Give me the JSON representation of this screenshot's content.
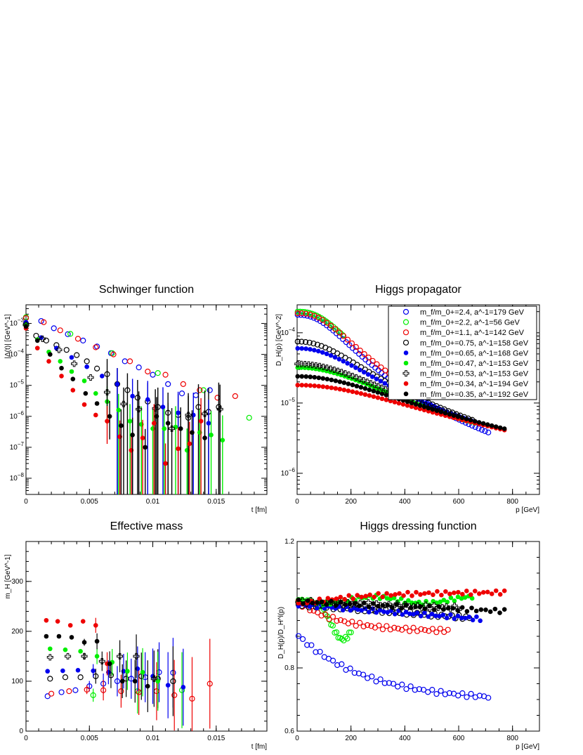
{
  "colors": {
    "blue": "#0000ee",
    "green": "#00ee00",
    "red": "#ee0000",
    "black": "#000000"
  },
  "legend": [
    {
      "label": "m_f/m_0+=2.4, a^-1=179 GeV",
      "color": "#0000ee",
      "style": "open-circle"
    },
    {
      "label": "m_f/m_0+=2.2, a^-1=56 GeV",
      "color": "#00ee00",
      "style": "open-circle"
    },
    {
      "label": "m_f/m_0+=1.1, a^-1=142 GeV",
      "color": "#ee0000",
      "style": "open-circle"
    },
    {
      "label": "m_f/m_0+=0.75, a^-1=158 GeV",
      "color": "#000000",
      "style": "open-circle"
    },
    {
      "label": "m_f/m_0+=0.65, a^-1=168 GeV",
      "color": "#0000ee",
      "style": "filled-circle"
    },
    {
      "label": "m_f/m_0+=0.47, a^-1=153 GeV",
      "color": "#00ee00",
      "style": "filled-circle"
    },
    {
      "label": "m_f/m_0+=0.53, a^-1=153 GeV",
      "color": "#000000",
      "style": "open-cross"
    },
    {
      "label": "m_f/m_0+=0.34, a^-1=194 GeV",
      "color": "#ee0000",
      "style": "filled-circle"
    },
    {
      "label": "m_f/m_0+=0.35, a^-1=192 GeV",
      "color": "#000000",
      "style": "filled-circle"
    }
  ],
  "chart_data": [
    {
      "type": "scatter",
      "title": "Schwinger function",
      "xlabel": "t [fm]",
      "ylabel": "|Δ(t)| [GeV^-1]",
      "xlim": [
        0,
        0.019
      ],
      "ylim": [
        3e-09,
        0.004
      ],
      "yscale": "log",
      "xticks": [
        "0",
        "0.005",
        "0.01",
        "0.015"
      ],
      "yticks": [
        "10^-8",
        "10^-7",
        "10^-6",
        "10^-5",
        "10^-4",
        "10^-3"
      ],
      "series": [
        {
          "values": [
            [
              0.0,
              0.0015
            ],
            [
              0.0012,
              0.0012
            ],
            [
              0.0022,
              0.0007
            ],
            [
              0.0033,
              0.00045
            ],
            [
              0.0045,
              0.00028
            ],
            [
              0.0056,
              0.00018
            ],
            [
              0.0067,
              0.00011
            ],
            [
              0.0078,
              6e-05
            ],
            [
              0.0089,
              3.8e-05
            ],
            [
              0.01,
              2.2e-05
            ],
            [
              0.0112,
              1.1e-05
            ],
            [
              0.0123,
              5.5e-06
            ],
            [
              0.0134,
              4.8e-06
            ],
            [
              0.0145,
              7e-06
            ]
          ]
        },
        {
          "values": [
            [
              0.0,
              0.0016
            ],
            [
              0.0035,
              0.00046
            ],
            [
              0.0068,
              0.00011
            ],
            [
              0.0104,
              2.5e-05
            ],
            [
              0.014,
              7e-06
            ],
            [
              0.0176,
              9e-07
            ]
          ]
        },
        {
          "values": [
            [
              0.0,
              0.0015
            ],
            [
              0.0014,
              0.0011
            ],
            [
              0.0027,
              0.0006
            ],
            [
              0.0041,
              0.00032
            ],
            [
              0.0055,
              0.00017
            ],
            [
              0.0069,
              0.0001
            ],
            [
              0.0082,
              6e-05
            ],
            [
              0.0096,
              2.8e-05
            ],
            [
              0.011,
              2.2e-05
            ],
            [
              0.0124,
              1.1e-05
            ],
            [
              0.0137,
              7e-06
            ],
            [
              0.0151,
              4e-06
            ],
            [
              0.0165,
              4.5e-06
            ]
          ]
        },
        {
          "values": [
            [
              0.0,
              0.001
            ],
            [
              0.0008,
              0.0004
            ],
            [
              0.0016,
              0.00028
            ],
            [
              0.0024,
              0.0002
            ],
            [
              0.0032,
              0.00014
            ],
            [
              0.004,
              9.5e-05
            ],
            [
              0.0048,
              6e-05
            ],
            [
              0.0056,
              3.5e-05
            ],
            [
              0.0064,
              2.3e-05
            ],
            [
              0.0072,
              1.1e-05
            ],
            [
              0.008,
              7e-06
            ],
            [
              0.0088,
              4e-06
            ],
            [
              0.0096,
              3e-06
            ],
            [
              0.0104,
              2e-06
            ],
            [
              0.0112,
              1.3e-06
            ],
            [
              0.012,
              1.1e-06
            ],
            [
              0.0128,
              9e-07
            ],
            [
              0.0136,
              2e-06
            ],
            [
              0.0144,
              1.4e-06
            ],
            [
              0.0152,
              2e-06
            ]
          ]
        },
        {
          "values": [
            [
              0.0,
              0.0011
            ],
            [
              0.0012,
              0.00035
            ],
            [
              0.0024,
              0.00016
            ],
            [
              0.0036,
              8e-05
            ],
            [
              0.0048,
              4e-05
            ],
            [
              0.006,
              2e-05
            ],
            [
              0.0072,
              1.1e-05
            ],
            [
              0.0084,
              4.5e-06
            ],
            [
              0.0096,
              3.5e-06
            ],
            [
              0.0108,
              2e-06
            ],
            [
              0.012,
              1.3e-06
            ],
            [
              0.0132,
              1.1e-06
            ],
            [
              0.0144,
              6e-07
            ]
          ]
        },
        {
          "values": [
            [
              0.0,
              0.0009
            ],
            [
              0.0009,
              0.0003
            ],
            [
              0.0018,
              0.00012
            ],
            [
              0.0027,
              6e-05
            ],
            [
              0.0036,
              2.8e-05
            ],
            [
              0.0046,
              1.4e-05
            ],
            [
              0.0055,
              5.5e-06
            ],
            [
              0.0064,
              3e-06
            ],
            [
              0.0073,
              1.6e-06
            ],
            [
              0.0082,
              7e-07
            ],
            [
              0.0091,
              5.5e-07
            ],
            [
              0.01,
              4e-07
            ],
            [
              0.0109,
              4e-07
            ],
            [
              0.0118,
              4.5e-07
            ],
            [
              0.0127,
              8e-08
            ],
            [
              0.0137,
              3e-07
            ],
            [
              0.0146,
              2.5e-07
            ],
            [
              0.0155,
              1.7e-07
            ]
          ]
        },
        {
          "values": [
            [
              0.0,
              0.0009
            ],
            [
              0.0013,
              0.00032
            ],
            [
              0.0026,
              0.00014
            ],
            [
              0.0038,
              5e-05
            ],
            [
              0.0051,
              1.8e-05
            ],
            [
              0.0064,
              6e-06
            ],
            [
              0.0077,
              2.5e-06
            ],
            [
              0.0089,
              1.7e-06
            ],
            [
              0.0102,
              1.8e-06
            ],
            [
              0.0115,
              4e-07
            ],
            [
              0.0128,
              1.1e-06
            ],
            [
              0.0141,
              1.2e-06
            ],
            [
              0.0153,
              1.7e-06
            ]
          ]
        },
        {
          "values": [
            [
              0.0,
              0.0007
            ],
            [
              0.0009,
              0.00016
            ],
            [
              0.0018,
              6e-05
            ],
            [
              0.0028,
              2e-05
            ],
            [
              0.0037,
              7e-06
            ],
            [
              0.0046,
              2.4e-06
            ],
            [
              0.0055,
              1.1e-06
            ],
            [
              0.0064,
              7e-07
            ],
            [
              0.0074,
              2.2e-07
            ],
            [
              0.0083,
              8e-08
            ],
            [
              0.0092,
              2e-07
            ],
            [
              0.0101,
              6e-07
            ],
            [
              0.011,
              3e-08
            ],
            [
              0.012,
              9e-08
            ],
            [
              0.0129,
              1.3e-07
            ],
            [
              0.0138,
              7e-07
            ]
          ]
        },
        {
          "values": [
            [
              0.0,
              0.0008
            ],
            [
              0.0009,
              0.00028
            ],
            [
              0.0019,
              0.0001
            ],
            [
              0.0028,
              3.6e-05
            ],
            [
              0.0037,
              1.6e-05
            ],
            [
              0.0047,
              5.5e-06
            ],
            [
              0.0056,
              2.6e-06
            ],
            [
              0.0066,
              1e-06
            ],
            [
              0.0075,
              5e-07
            ],
            [
              0.0084,
              2.5e-07
            ],
            [
              0.0094,
              1e-07
            ],
            [
              0.0103,
              1e-06
            ],
            [
              0.0112,
              6e-07
            ],
            [
              0.0122,
              4e-07
            ],
            [
              0.0131,
              3e-07
            ],
            [
              0.0141,
              2e-07
            ]
          ]
        }
      ]
    },
    {
      "type": "scatter",
      "title": "Higgs propagator",
      "xlabel": "p [GeV]",
      "ylabel": "D_H(p) [GeV^-2]",
      "xlim": [
        0,
        900
      ],
      "ylim": [
        5e-07,
        0.00025
      ],
      "yscale": "log",
      "xticks": [
        "0",
        "200",
        "400",
        "600",
        "800"
      ],
      "yticks": [
        "10^-6",
        "10^-5",
        "10^-4"
      ]
    },
    {
      "type": "scatter",
      "title": "Effective mass",
      "xlabel": "t [fm]",
      "ylabel": "m_H [GeV^-1]",
      "xlim": [
        0,
        0.019
      ],
      "ylim": [
        0,
        380
      ],
      "xticks": [
        "0",
        "0.005",
        "0.01",
        "0.015"
      ],
      "yticks": [
        "0",
        "100",
        "200",
        "300"
      ],
      "series": [
        {
          "values": [
            [
              0.0017,
              70
            ],
            [
              0.0028,
              78
            ],
            [
              0.0039,
              82
            ],
            [
              0.005,
              90
            ],
            [
              0.0061,
              95
            ],
            [
              0.0072,
              100
            ],
            [
              0.0083,
              105
            ],
            [
              0.0094,
              108
            ],
            [
              0.0105,
              118
            ],
            [
              0.0116,
              117
            ]
          ]
        },
        {
          "values": [
            [
              0.0053,
              72
            ],
            [
              0.0088,
              80
            ],
            [
              0.0123,
              82
            ]
          ]
        },
        {
          "values": [
            [
              0.002,
              75
            ],
            [
              0.0034,
              80
            ],
            [
              0.0048,
              83
            ],
            [
              0.0061,
              82
            ],
            [
              0.0075,
              80
            ],
            [
              0.0089,
              78
            ],
            [
              0.0103,
              80
            ],
            [
              0.0117,
              72
            ],
            [
              0.0131,
              65
            ],
            [
              0.0145,
              95
            ]
          ]
        },
        {
          "values": [
            [
              0.0019,
              105
            ],
            [
              0.0031,
              108
            ],
            [
              0.0043,
              108
            ],
            [
              0.0055,
              110
            ],
            [
              0.0067,
              112
            ],
            [
              0.0079,
              105
            ],
            [
              0.0091,
              110
            ],
            [
              0.0104,
              105
            ],
            [
              0.0116,
              100
            ]
          ]
        },
        {
          "values": [
            [
              0.0017,
              120
            ],
            [
              0.0029,
              121
            ],
            [
              0.0041,
              122
            ],
            [
              0.0053,
              121
            ],
            [
              0.0065,
              118
            ],
            [
              0.0077,
              120
            ],
            [
              0.0088,
              125
            ],
            [
              0.01,
              110
            ],
            [
              0.0112,
              92
            ],
            [
              0.0124,
              88
            ]
          ]
        },
        {
          "values": [
            [
              0.0019,
              165
            ],
            [
              0.0031,
              163
            ],
            [
              0.0043,
              160
            ],
            [
              0.0056,
              150
            ],
            [
              0.0068,
              138
            ],
            [
              0.008,
              120
            ],
            [
              0.0092,
              118
            ],
            [
              0.0104,
              100
            ]
          ]
        },
        {
          "values": [
            [
              0.0019,
              148
            ],
            [
              0.0033,
              150
            ],
            [
              0.0046,
              150
            ],
            [
              0.006,
              140
            ],
            [
              0.0074,
              150
            ],
            [
              0.0087,
              150
            ],
            [
              0.0101,
              105
            ]
          ]
        },
        {
          "values": [
            [
              0.0016,
              222
            ],
            [
              0.0025,
              220
            ],
            [
              0.0035,
              212
            ],
            [
              0.0045,
              220
            ],
            [
              0.0055,
              212
            ],
            [
              0.0064,
              135
            ]
          ]
        },
        {
          "values": [
            [
              0.0016,
              190
            ],
            [
              0.0026,
              190
            ],
            [
              0.0036,
              188
            ],
            [
              0.0046,
              178
            ],
            [
              0.0056,
              180
            ],
            [
              0.0066,
              135
            ],
            [
              0.0076,
              100
            ],
            [
              0.0086,
              100
            ],
            [
              0.0096,
              90
            ]
          ]
        }
      ]
    },
    {
      "type": "scatter",
      "title": "Higgs dressing function",
      "xlabel": "p [GeV]",
      "ylabel": "D_H(p)/D_H^l(p)",
      "xlim": [
        0,
        900
      ],
      "ylim": [
        0.6,
        1.2
      ],
      "xticks": [
        "0",
        "200",
        "400",
        "600",
        "800"
      ],
      "yticks": [
        "0.6",
        "0.8",
        "1.2"
      ]
    }
  ]
}
